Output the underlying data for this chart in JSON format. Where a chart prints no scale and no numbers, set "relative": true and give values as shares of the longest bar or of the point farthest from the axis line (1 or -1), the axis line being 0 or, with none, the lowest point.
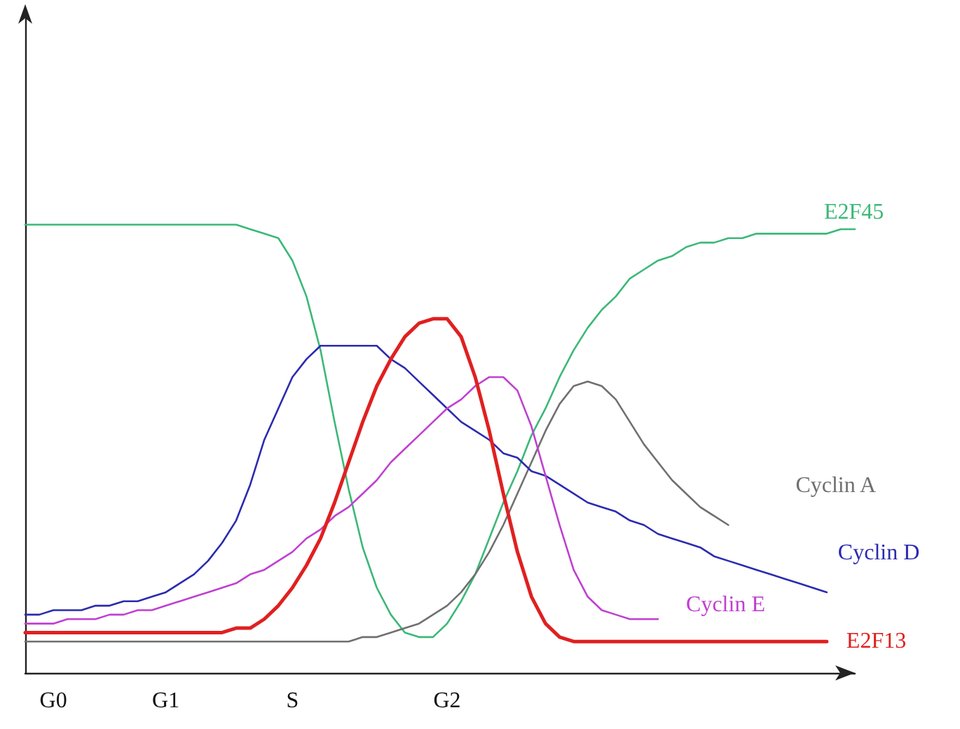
{
  "chart_data": {
    "type": "line",
    "relative": true,
    "legend": false,
    "grid": false,
    "marker": "none",
    "line_style": "solid",
    "tick_labels": "x",
    "categories": [
      null,
      null,
      "G0",
      null,
      null,
      null,
      null,
      null,
      null,
      null,
      "G1",
      null,
      null,
      null,
      null,
      null,
      null,
      null,
      null,
      "S",
      null,
      null,
      null,
      null,
      null,
      null,
      null,
      null,
      null,
      null,
      "G2",
      null,
      null,
      null,
      null,
      null,
      null,
      null,
      null,
      null,
      null,
      null,
      null,
      null,
      null,
      null,
      null,
      null,
      null,
      null,
      null,
      null,
      null,
      null,
      null,
      null,
      null,
      null,
      null,
      null
    ],
    "series": [
      {
        "name": "E2F45",
        "color": "#3cb878",
        "values": [
          1.0,
          1.0,
          1.0,
          1.0,
          1.0,
          1.0,
          1.0,
          1.0,
          1.0,
          1.0,
          1.0,
          1.0,
          1.0,
          1.0,
          1.0,
          1.0,
          0.99,
          0.98,
          0.97,
          0.92,
          0.84,
          0.72,
          0.56,
          0.41,
          0.28,
          0.19,
          0.13,
          0.09,
          0.08,
          0.08,
          0.11,
          0.16,
          0.22,
          0.3,
          0.38,
          0.45,
          0.53,
          0.59,
          0.66,
          0.72,
          0.77,
          0.81,
          0.84,
          0.88,
          0.9,
          0.92,
          0.93,
          0.95,
          0.96,
          0.96,
          0.97,
          0.97,
          0.98,
          0.98,
          0.98,
          0.98,
          0.98,
          0.98,
          0.99,
          0.99
        ]
      },
      {
        "name": "Cyclin A",
        "color": "#707070",
        "values": [
          0.07,
          0.07,
          0.07,
          0.07,
          0.07,
          0.07,
          0.07,
          0.07,
          0.07,
          0.07,
          0.07,
          0.07,
          0.07,
          0.07,
          0.07,
          0.07,
          0.07,
          0.07,
          0.07,
          0.07,
          0.07,
          0.07,
          0.07,
          0.07,
          0.08,
          0.08,
          0.09,
          0.1,
          0.11,
          0.13,
          0.15,
          0.18,
          0.22,
          0.27,
          0.33,
          0.4,
          0.47,
          0.54,
          0.6,
          0.64,
          0.65,
          0.64,
          0.61,
          0.56,
          0.51,
          0.47,
          0.43,
          0.4,
          0.37,
          0.35,
          0.33,
          null,
          null,
          null,
          null,
          null,
          null,
          null,
          null,
          null
        ]
      },
      {
        "name": "Cyclin D",
        "color": "#2b2bb0",
        "values": [
          0.13,
          0.13,
          0.14,
          0.14,
          0.14,
          0.15,
          0.15,
          0.16,
          0.16,
          0.17,
          0.18,
          0.2,
          0.22,
          0.25,
          0.29,
          0.34,
          0.42,
          0.52,
          0.59,
          0.66,
          0.7,
          0.73,
          0.73,
          0.73,
          0.73,
          0.73,
          0.7,
          0.68,
          0.65,
          0.62,
          0.59,
          0.56,
          0.54,
          0.52,
          0.49,
          0.48,
          0.45,
          0.44,
          0.42,
          0.4,
          0.38,
          0.37,
          0.36,
          0.34,
          0.33,
          0.31,
          0.3,
          0.29,
          0.28,
          0.26,
          0.25,
          0.24,
          0.23,
          0.22,
          0.21,
          0.2,
          0.19,
          0.18,
          null,
          null
        ]
      },
      {
        "name": "Cyclin E",
        "color": "#c040d0",
        "values": [
          0.11,
          0.11,
          0.11,
          0.12,
          0.12,
          0.12,
          0.13,
          0.13,
          0.14,
          0.14,
          0.15,
          0.16,
          0.17,
          0.18,
          0.19,
          0.2,
          0.22,
          0.23,
          0.25,
          0.27,
          0.3,
          0.32,
          0.35,
          0.37,
          0.4,
          0.43,
          0.47,
          0.5,
          0.53,
          0.56,
          0.59,
          0.61,
          0.64,
          0.66,
          0.66,
          0.63,
          0.55,
          0.44,
          0.33,
          0.23,
          0.17,
          0.14,
          0.13,
          0.12,
          0.12,
          0.12,
          null,
          null,
          null,
          null,
          null,
          null,
          null,
          null,
          null,
          null,
          null,
          null,
          null,
          null
        ]
      },
      {
        "name": "E2F13",
        "color": "#e02020",
        "values": [
          0.09,
          0.09,
          0.09,
          0.09,
          0.09,
          0.09,
          0.09,
          0.09,
          0.09,
          0.09,
          0.09,
          0.09,
          0.09,
          0.09,
          0.09,
          0.1,
          0.1,
          0.12,
          0.15,
          0.19,
          0.24,
          0.3,
          0.38,
          0.47,
          0.56,
          0.64,
          0.7,
          0.75,
          0.78,
          0.79,
          0.79,
          0.75,
          0.66,
          0.54,
          0.4,
          0.27,
          0.17,
          0.11,
          0.08,
          0.07,
          0.07,
          0.07,
          0.07,
          0.07,
          0.07,
          0.07,
          0.07,
          0.07,
          0.07,
          0.07,
          0.07,
          0.07,
          0.07,
          0.07,
          0.07,
          0.07,
          0.07,
          0.07,
          null,
          null
        ]
      }
    ]
  }
}
